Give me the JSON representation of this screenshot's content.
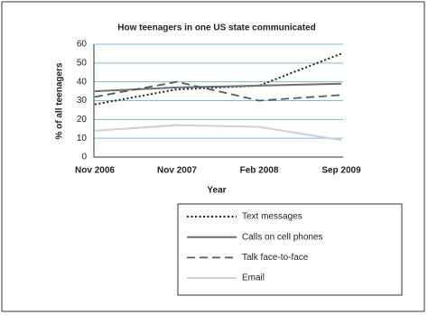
{
  "chart_data": {
    "type": "line",
    "title": "How teenagers in one US state communicated",
    "x_label": "Year",
    "y_label": "% of all teenagers",
    "categories": [
      "Nov 2006",
      "Nov 2007",
      "Feb 2008",
      "Sep 2009"
    ],
    "series": [
      {
        "name": "Text messages",
        "color": "#222222",
        "dash": "dotted",
        "values": [
          28,
          36,
          38,
          55
        ]
      },
      {
        "name": "Calls on cell phones",
        "color": "#707070",
        "dash": "solid",
        "values": [
          35,
          37,
          38,
          39
        ]
      },
      {
        "name": "Talk face-to-face",
        "color": "#5a5a5a",
        "dash": "dashed",
        "values": [
          32,
          40,
          30,
          33
        ]
      },
      {
        "name": "Email",
        "color": "#cfcfcf",
        "dash": "solid",
        "values": [
          14,
          17,
          16,
          9
        ]
      }
    ],
    "ylim": [
      0,
      60
    ],
    "yticks": [
      0,
      10,
      20,
      30,
      40,
      50,
      60
    ],
    "grid": true,
    "legend": "bottom-right"
  }
}
